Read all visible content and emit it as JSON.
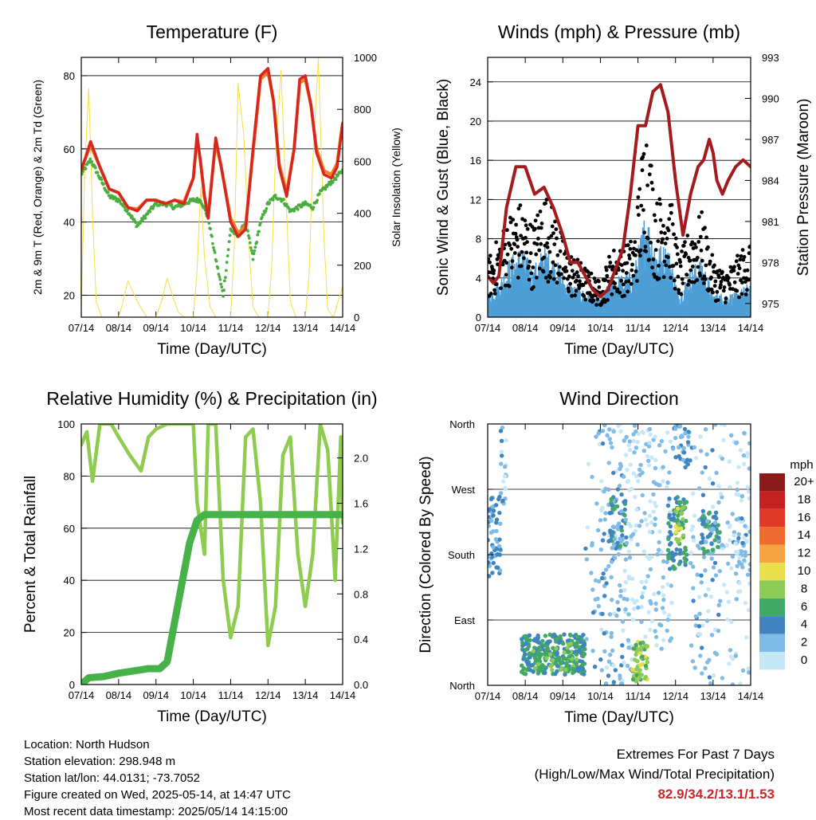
{
  "colors": {
    "temp2m": "#d7261f",
    "temp9m": "#f07e2a",
    "dew": "#4aad3f",
    "solar": "#f7dd45",
    "gust": "#000000",
    "wind": "#4e9fd6",
    "pressure": "#a31b1e",
    "rh": "#8dcc4e",
    "precip": "#47b24a",
    "extremes": "#c8282a"
  },
  "time_ticks": [
    "07/14",
    "08/14",
    "09/14",
    "10/14",
    "11/14",
    "12/14",
    "13/14",
    "14/14"
  ],
  "chart_data": [
    {
      "id": "temperature",
      "type": "line",
      "title": "Temperature (F)",
      "xlabel": "Time (Day/UTC)",
      "ylabel": "2m & 9m T (Red, Orange) & 2m Td (Green)",
      "ylabel_right": "Solar Insolation (Yellow)",
      "xlim": [
        0,
        7
      ],
      "ylim": [
        14,
        85
      ],
      "ylim_right": [
        0,
        1000
      ],
      "yticks": [
        20,
        40,
        60,
        80
      ],
      "yticks_right": [
        0,
        200,
        400,
        600,
        800,
        1000
      ],
      "series": [
        {
          "key": "t2",
          "axis": "left",
          "x": [
            0,
            0.25,
            0.5,
            0.75,
            1,
            1.25,
            1.5,
            1.75,
            2,
            2.25,
            2.5,
            2.75,
            3,
            3.1,
            3.2,
            3.3,
            3.4,
            3.5,
            3.6,
            3.75,
            4,
            4.2,
            4.4,
            4.6,
            4.8,
            5,
            5.15,
            5.3,
            5.5,
            5.7,
            5.85,
            6,
            6.15,
            6.3,
            6.5,
            6.7,
            6.85,
            7
          ],
          "y": [
            54,
            62,
            55,
            49,
            48,
            44,
            43,
            46,
            46,
            45,
            46,
            45,
            52,
            64,
            56,
            47,
            41,
            52,
            63,
            55,
            40,
            36,
            38,
            60,
            80,
            82,
            73,
            55,
            47,
            60,
            79,
            80,
            72,
            59,
            53,
            52,
            55,
            67
          ]
        },
        {
          "key": "t9",
          "axis": "left",
          "x": [
            0,
            0.25,
            0.5,
            0.75,
            1,
            1.25,
            1.5,
            1.75,
            2,
            2.25,
            2.5,
            2.75,
            3,
            3.1,
            3.2,
            3.3,
            3.4,
            3.5,
            3.6,
            3.75,
            4,
            4.2,
            4.4,
            4.6,
            4.8,
            5,
            5.15,
            5.3,
            5.5,
            5.7,
            5.85,
            6,
            6.15,
            6.3,
            6.5,
            6.7,
            6.85,
            7
          ],
          "y": [
            54.5,
            61,
            55,
            49,
            48,
            44,
            43.5,
            46,
            46,
            45,
            46,
            45.5,
            52,
            63,
            56,
            47,
            42,
            52,
            62,
            55,
            41,
            37,
            39,
            59,
            79,
            81,
            73,
            56,
            48,
            60,
            78,
            79,
            72,
            60,
            54,
            53,
            56,
            67
          ]
        },
        {
          "key": "td",
          "axis": "left",
          "x": [
            0,
            0.25,
            0.5,
            0.75,
            1,
            1.25,
            1.5,
            1.75,
            2,
            2.25,
            2.5,
            2.75,
            3,
            3.2,
            3.4,
            3.6,
            3.8,
            4,
            4.2,
            4.4,
            4.6,
            4.8,
            5,
            5.2,
            5.4,
            5.6,
            5.8,
            6,
            6.2,
            6.4,
            6.6,
            6.8,
            7
          ],
          "y": [
            53,
            57,
            52,
            47,
            46,
            43,
            39,
            42,
            45,
            45,
            44,
            45,
            46,
            46,
            41,
            30,
            20,
            38,
            36,
            40,
            30,
            40,
            45,
            47,
            46,
            43,
            44,
            45,
            44,
            48,
            50,
            52,
            54
          ]
        },
        {
          "key": "solar",
          "axis": "right",
          "x": [
            0,
            0.1,
            0.2,
            0.3,
            0.4,
            0.55,
            0.7,
            1,
            1.1,
            1.25,
            1.5,
            1.75,
            2,
            2.15,
            2.3,
            2.45,
            2.6,
            2.75,
            3,
            3.1,
            3.2,
            3.3,
            3.45,
            3.6,
            3.75,
            4,
            4.1,
            4.2,
            4.35,
            4.5,
            4.6,
            4.75,
            5,
            5.1,
            5.2,
            5.35,
            5.5,
            5.6,
            5.75,
            6,
            6.1,
            6.2,
            6.35,
            6.5,
            6.6,
            6.75,
            7
          ],
          "y": [
            30,
            600,
            880,
            400,
            60,
            0,
            0,
            0,
            50,
            140,
            60,
            0,
            0,
            60,
            150,
            80,
            20,
            0,
            0,
            180,
            500,
            230,
            40,
            0,
            0,
            0,
            280,
            900,
            700,
            250,
            40,
            0,
            0,
            200,
            620,
            950,
            400,
            60,
            0,
            0,
            160,
            600,
            1000,
            300,
            30,
            0,
            120
          ]
        }
      ]
    },
    {
      "id": "winds",
      "type": "scatter",
      "title": "Winds (mph) & Pressure (mb)",
      "xlabel": "Time (Day/UTC)",
      "ylabel": "Sonic Wind & Gust (Blue, Black)",
      "ylabel_right": "Station Pressure (Maroon)",
      "xlim": [
        0,
        7
      ],
      "ylim": [
        0,
        26.5
      ],
      "ylim_right": [
        974,
        993
      ],
      "yticks": [
        0,
        4,
        8,
        12,
        16,
        20,
        24
      ],
      "yticks_right": [
        975,
        978,
        981,
        984,
        987,
        990,
        993
      ],
      "series": [
        {
          "key": "pressure",
          "axis": "right",
          "x": [
            0,
            0.15,
            0.3,
            0.5,
            0.75,
            1,
            1.25,
            1.5,
            1.75,
            2,
            2.2,
            2.4,
            2.6,
            2.8,
            3,
            3.2,
            3.4,
            3.6,
            3.8,
            4,
            4.2,
            4.4,
            4.6,
            4.8,
            5,
            5.2,
            5.4,
            5.6,
            5.75,
            5.9,
            6,
            6.1,
            6.25,
            6.4,
            6.6,
            6.8,
            7
          ],
          "y": [
            977,
            976.5,
            977,
            982,
            985,
            985,
            983,
            983.5,
            982,
            980,
            978,
            978,
            977,
            976,
            975.5,
            976,
            977.5,
            979,
            983,
            988,
            988,
            990.5,
            991,
            989,
            984,
            980,
            983,
            985,
            985.5,
            987,
            986,
            984,
            983,
            984,
            985,
            985.5,
            985
          ]
        },
        {
          "key": "gust_envelope",
          "axis": "left",
          "x": [
            0,
            0.3,
            0.6,
            0.9,
            1.2,
            1.5,
            1.8,
            2.1,
            2.4,
            2.7,
            3,
            3.3,
            3.6,
            3.9,
            4.2,
            4.5,
            4.8,
            5.1,
            5.4,
            5.7,
            6,
            6.3,
            6.6,
            7
          ],
          "y": [
            5,
            7,
            9,
            10,
            8,
            11,
            9,
            6,
            5,
            4,
            3,
            6,
            6,
            7,
            18,
            10,
            12,
            5,
            8,
            9,
            5,
            4,
            5,
            7
          ]
        },
        {
          "key": "wind_envelope",
          "axis": "left",
          "x": [
            0,
            0.3,
            0.6,
            0.9,
            1.2,
            1.5,
            1.8,
            2.1,
            2.4,
            2.7,
            3,
            3.3,
            3.6,
            3.9,
            4.2,
            4.5,
            4.8,
            5.1,
            5.4,
            5.7,
            6,
            6.3,
            6.6,
            7
          ],
          "y": [
            2,
            3,
            5,
            6,
            4,
            6,
            5,
            3,
            2.5,
            2,
            1.5,
            3.5,
            3.5,
            4,
            9,
            6,
            6,
            2,
            4,
            5,
            2,
            2,
            2,
            3
          ]
        }
      ]
    },
    {
      "id": "humidity",
      "type": "line",
      "title": "Relative Humidity (%) & Precipitation (in)",
      "xlabel": "Time (Day/UTC)",
      "ylabel": "Percent & Total Rainfall",
      "xlim": [
        0,
        7
      ],
      "ylim": [
        0,
        100
      ],
      "ylim_right": [
        0,
        2.3
      ],
      "yticks": [
        0,
        20,
        40,
        60,
        80,
        100
      ],
      "yticks_right": [
        0.0,
        0.4,
        0.8,
        1.2,
        1.6,
        2.0
      ],
      "series": [
        {
          "key": "rh",
          "axis": "left",
          "x": [
            0,
            0.15,
            0.3,
            0.5,
            0.8,
            1,
            1.3,
            1.6,
            1.8,
            2,
            2.3,
            2.6,
            2.8,
            3,
            3.1,
            3.3,
            3.4,
            3.6,
            3.8,
            4,
            4.2,
            4.4,
            4.6,
            4.8,
            5,
            5.2,
            5.4,
            5.6,
            5.8,
            6,
            6.2,
            6.4,
            6.6,
            6.8,
            6.95,
            7
          ],
          "y": [
            92,
            97,
            78,
            100,
            100,
            95,
            88,
            82,
            95,
            98,
            100,
            100,
            100,
            100,
            70,
            50,
            100,
            100,
            40,
            18,
            30,
            95,
            98,
            70,
            15,
            30,
            88,
            95,
            50,
            30,
            50,
            100,
            90,
            40,
            95,
            62
          ]
        },
        {
          "key": "precip",
          "axis": "right",
          "x": [
            0,
            0.1,
            0.2,
            0.6,
            1,
            1.4,
            1.8,
            2.1,
            2.3,
            2.5,
            2.7,
            2.9,
            3.1,
            3.3,
            3.5,
            4,
            5,
            6,
            7
          ],
          "y": [
            0.0,
            0.03,
            0.06,
            0.07,
            0.1,
            0.12,
            0.14,
            0.14,
            0.2,
            0.55,
            0.9,
            1.25,
            1.45,
            1.5,
            1.5,
            1.5,
            1.5,
            1.5,
            1.5
          ]
        }
      ]
    },
    {
      "id": "direction",
      "type": "scatter",
      "title": "Wind Direction",
      "xlabel": "Time (Day/UTC)",
      "ylabel": "Direction (Colored By Speed)",
      "xlim": [
        0,
        7
      ],
      "ylim": [
        0,
        360
      ],
      "yticks_labels": [
        "North",
        "East",
        "South",
        "West",
        "North"
      ],
      "yticks": [
        0,
        90,
        180,
        270,
        360
      ],
      "colorbar": {
        "title": "mph",
        "labels": [
          "20+",
          "18",
          "16",
          "14",
          "12",
          "10",
          "8",
          "6",
          "4",
          "2",
          "0"
        ],
        "colors": [
          "#8b1a1a",
          "#c42222",
          "#df3a2a",
          "#ef6a2d",
          "#f6a441",
          "#e9df4d",
          "#8ccb55",
          "#42a866",
          "#3f84c0",
          "#7fbbe6",
          "#c6e7f7"
        ]
      }
    }
  ],
  "info": {
    "location": "Location: North Hudson",
    "elevation": "Station elevation: 298.948 m",
    "latlon": "Station lat/lon: 44.0131; -73.7052",
    "created": "Figure created on Wed, 2025-05-14, at 14:47 UTC",
    "latest": "Most recent data timestamp: 2025/05/14 14:15:00"
  },
  "extremes": {
    "heading": "Extremes For Past 7 Days",
    "subheading": "(High/Low/Max Wind/Total Precipitation)",
    "values": "82.9/34.2/13.1/1.53"
  }
}
